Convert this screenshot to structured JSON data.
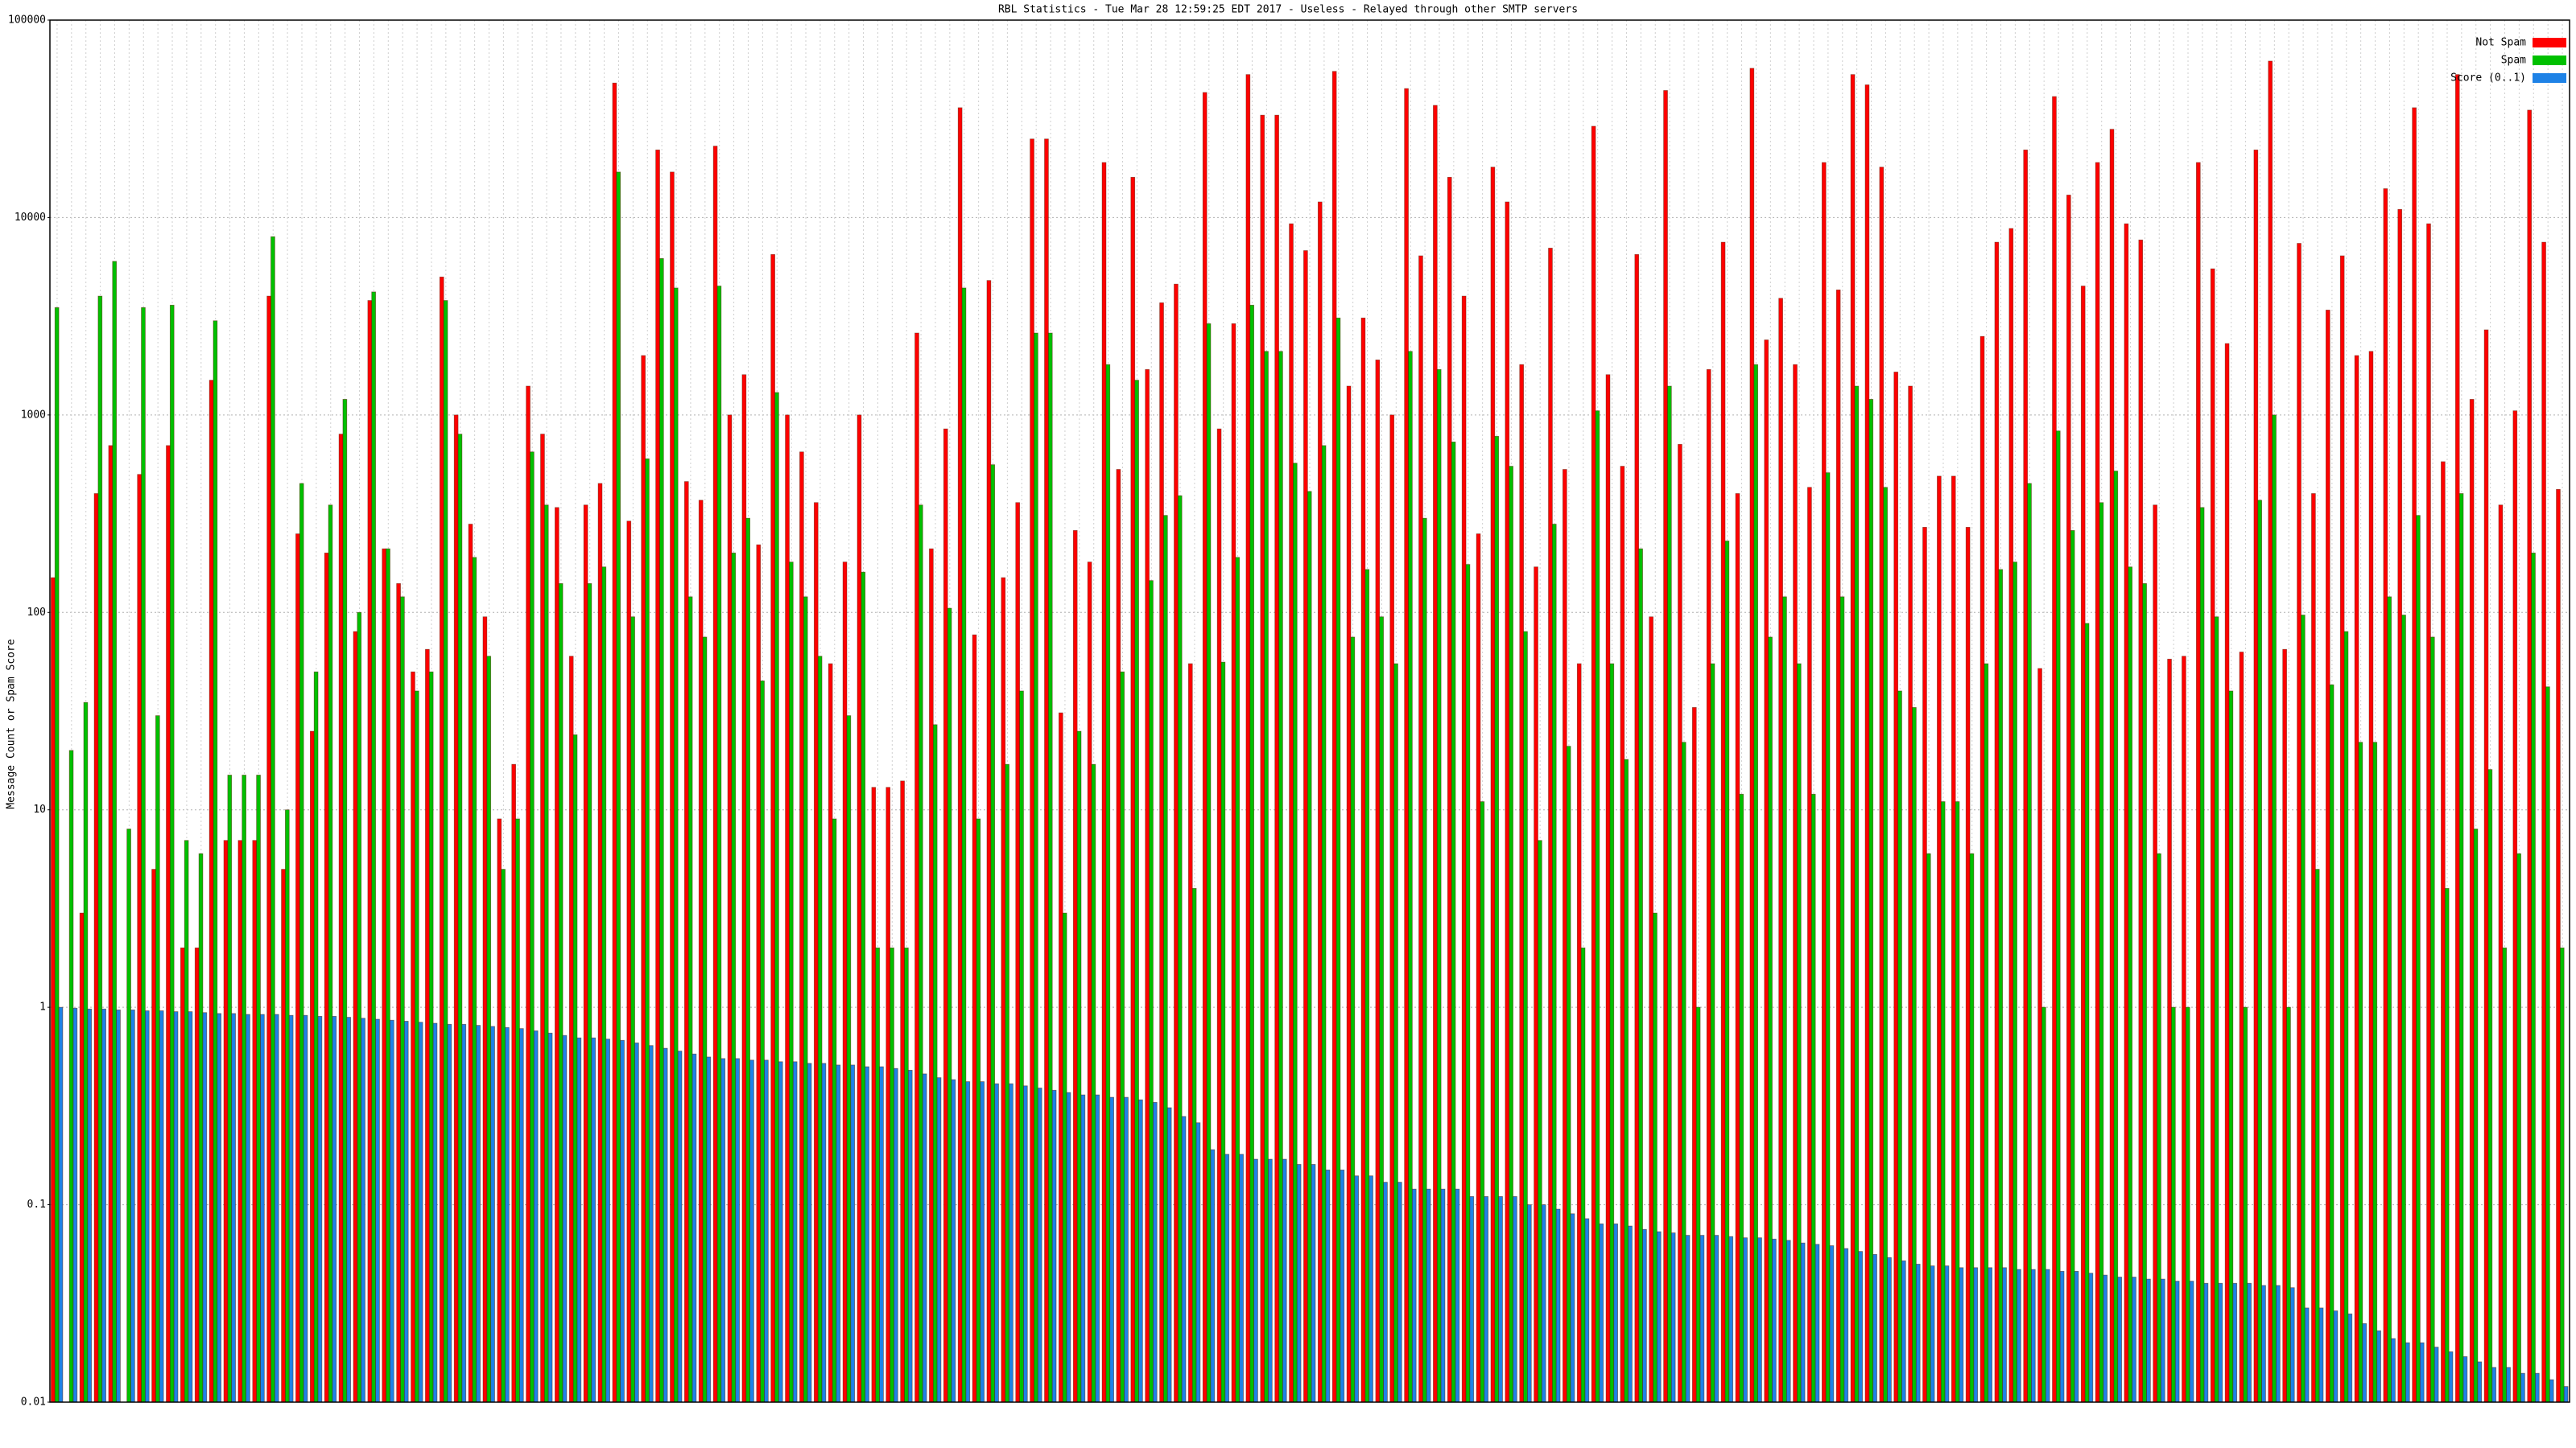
{
  "chart_data": {
    "type": "bar",
    "title": "RBL Statistics - Tue Mar 28 12:59:25 EDT 2017 - Useless - Relayed through other SMTP servers",
    "y_label": "Message Count or Spam Score",
    "ylog": true,
    "ylim": [
      0.01,
      100000
    ],
    "yticks": [
      0.01,
      0.1,
      1,
      10,
      100,
      1000,
      10000,
      100000
    ],
    "grid": true,
    "legend": "top-right",
    "categories": [
      null,
      null,
      null,
      null,
      null,
      null,
      null,
      null,
      null,
      null,
      null,
      null,
      null,
      null,
      null,
      null,
      null,
      null,
      null,
      null,
      null,
      null,
      null,
      null,
      null,
      null,
      null,
      null,
      null,
      null,
      null,
      null,
      null,
      null,
      null,
      null,
      null,
      null,
      null,
      null,
      null,
      null,
      null,
      null,
      null,
      null,
      null,
      null,
      null,
      null,
      null,
      null,
      null,
      null,
      null,
      null,
      null,
      null,
      null,
      null,
      null,
      null,
      null,
      null,
      null,
      null,
      null,
      null,
      null,
      null,
      null,
      null,
      null,
      null,
      null,
      null,
      null,
      null,
      null,
      null,
      null,
      null,
      null,
      null,
      null,
      null,
      null,
      null,
      null,
      null,
      null,
      null,
      null,
      null,
      null,
      null,
      null,
      null,
      null,
      null,
      null,
      null,
      null,
      null,
      null,
      null,
      null,
      null,
      null,
      null,
      null,
      null,
      null,
      null,
      null,
      null,
      null,
      null,
      null,
      null,
      null,
      null,
      null,
      null,
      null,
      null,
      null,
      null,
      null,
      null,
      null,
      null,
      null,
      null,
      null,
      null,
      null,
      null,
      null,
      null,
      null,
      null,
      null,
      null,
      null,
      null,
      null,
      null,
      null,
      null,
      null,
      null,
      null,
      null,
      null,
      null,
      null,
      null,
      null,
      null,
      null,
      null,
      null,
      null,
      null,
      null,
      null,
      null,
      null,
      null,
      null,
      null,
      null,
      null,
      null
    ],
    "series": [
      {
        "name": "Not Spam",
        "color": "#ff0000",
        "values": [
          150,
          null,
          3,
          400,
          700,
          null,
          500,
          5,
          700,
          2,
          2,
          1500,
          7,
          7,
          7,
          4000,
          5,
          250,
          25,
          200,
          800,
          80,
          3800,
          210,
          140,
          50,
          65,
          5000,
          1000,
          280,
          95,
          9,
          17,
          1400,
          800,
          340,
          60,
          350,
          450,
          48000,
          290,
          2000,
          22000,
          17000,
          460,
          370,
          23000,
          1000,
          1600,
          220,
          6500,
          1000,
          650,
          360,
          55,
          180,
          1000,
          13,
          13,
          14,
          2600,
          210,
          850,
          36000,
          77,
          4800,
          150,
          360,
          25000,
          25000,
          31,
          260,
          180,
          19000,
          530,
          16000,
          1700,
          3700,
          4600,
          55,
          43000,
          850,
          2900,
          53000,
          33000,
          33000,
          9300,
          6800,
          12000,
          55000,
          1400,
          3100,
          1900,
          1000,
          45000,
          6400,
          37000,
          16000,
          4000,
          250,
          18000,
          12000,
          1800,
          170,
          7000,
          530,
          55,
          29000,
          1600,
          550,
          6500,
          95,
          44000,
          710,
          33,
          1700,
          7500,
          400,
          57000,
          2400,
          3900,
          1800,
          430,
          19000,
          4300,
          53000,
          47000,
          18000,
          1650,
          1400,
          270,
          490,
          490,
          270,
          2500,
          7500,
          8800,
          22000,
          52,
          41000,
          13000,
          4500,
          19000,
          28000,
          9300,
          7700,
          350,
          58,
          60,
          19000,
          5500,
          2300,
          63,
          22000,
          62000,
          65,
          7400,
          400,
          3400,
          6400,
          2000,
          2100,
          14000,
          11000,
          36000,
          9300,
          580,
          53000,
          1200,
          2700,
          350,
          1050,
          35000,
          7500,
          420
        ]
      },
      {
        "name": "Spam",
        "color": "#00c000",
        "values": [
          3500,
          20,
          35,
          4000,
          6000,
          8,
          3500,
          30,
          3600,
          7,
          6,
          3000,
          15,
          15,
          15,
          8000,
          10,
          450,
          50,
          350,
          1200,
          100,
          4200,
          210,
          120,
          40,
          50,
          3800,
          800,
          190,
          60,
          5,
          9,
          650,
          350,
          140,
          24,
          140,
          170,
          17000,
          95,
          600,
          6200,
          4400,
          120,
          75,
          4500,
          200,
          300,
          45,
          1300,
          180,
          120,
          60,
          9,
          30,
          160,
          2,
          2,
          2,
          350,
          27,
          105,
          4400,
          9,
          560,
          17,
          40,
          2600,
          2600,
          3,
          25,
          17,
          1800,
          50,
          1500,
          145,
          310,
          390,
          4,
          2900,
          56,
          190,
          3600,
          2100,
          2100,
          570,
          410,
          700,
          3100,
          75,
          165,
          95,
          55,
          2100,
          300,
          1700,
          730,
          175,
          11,
          780,
          550,
          80,
          7,
          280,
          21,
          2,
          1050,
          55,
          18,
          210,
          3,
          1400,
          22,
          1,
          55,
          230,
          12,
          1800,
          75,
          120,
          55,
          12,
          510,
          120,
          1400,
          1200,
          430,
          40,
          33,
          6,
          11,
          11,
          6,
          55,
          165,
          180,
          450,
          1,
          830,
          260,
          88,
          360,
          520,
          170,
          140,
          6,
          1,
          1,
          340,
          95,
          40,
          1,
          370,
          1000,
          1,
          97,
          5,
          43,
          80,
          22,
          22,
          120,
          97,
          310,
          75,
          4,
          400,
          8,
          16,
          2,
          6,
          200,
          42,
          2
        ]
      },
      {
        "name": "Score (0..1)",
        "color": "#1e82e6",
        "values": [
          1.0,
          0.99,
          0.98,
          0.98,
          0.97,
          0.97,
          0.96,
          0.96,
          0.95,
          0.95,
          0.94,
          0.93,
          0.93,
          0.92,
          0.92,
          0.92,
          0.91,
          0.91,
          0.9,
          0.9,
          0.89,
          0.88,
          0.87,
          0.86,
          0.85,
          0.84,
          0.83,
          0.82,
          0.82,
          0.81,
          0.8,
          0.79,
          0.78,
          0.76,
          0.74,
          0.72,
          0.7,
          0.7,
          0.69,
          0.68,
          0.66,
          0.64,
          0.62,
          0.6,
          0.58,
          0.56,
          0.55,
          0.55,
          0.54,
          0.54,
          0.53,
          0.53,
          0.52,
          0.52,
          0.51,
          0.51,
          0.5,
          0.5,
          0.49,
          0.48,
          0.46,
          0.44,
          0.43,
          0.42,
          0.42,
          0.41,
          0.41,
          0.4,
          0.39,
          0.38,
          0.37,
          0.36,
          0.36,
          0.35,
          0.35,
          0.34,
          0.33,
          0.31,
          0.28,
          0.26,
          0.19,
          0.18,
          0.18,
          0.17,
          0.17,
          0.17,
          0.16,
          0.16,
          0.15,
          0.15,
          0.14,
          0.14,
          0.13,
          0.13,
          0.12,
          0.12,
          0.12,
          0.12,
          0.11,
          0.11,
          0.11,
          0.11,
          0.1,
          0.1,
          0.095,
          0.09,
          0.085,
          0.08,
          0.08,
          0.078,
          0.075,
          0.073,
          0.072,
          0.07,
          0.07,
          0.07,
          0.069,
          0.068,
          0.068,
          0.067,
          0.066,
          0.064,
          0.063,
          0.062,
          0.06,
          0.058,
          0.056,
          0.054,
          0.052,
          0.05,
          0.049,
          0.049,
          0.048,
          0.048,
          0.048,
          0.048,
          0.047,
          0.047,
          0.047,
          0.046,
          0.046,
          0.045,
          0.044,
          0.043,
          0.043,
          0.042,
          0.042,
          0.041,
          0.041,
          0.04,
          0.04,
          0.04,
          0.04,
          0.039,
          0.039,
          0.038,
          0.03,
          0.03,
          0.029,
          0.028,
          0.025,
          0.023,
          0.021,
          0.02,
          0.02,
          0.019,
          0.018,
          0.017,
          0.016,
          0.015,
          0.015,
          0.014,
          0.014,
          0.013,
          0.012
        ]
      }
    ]
  }
}
